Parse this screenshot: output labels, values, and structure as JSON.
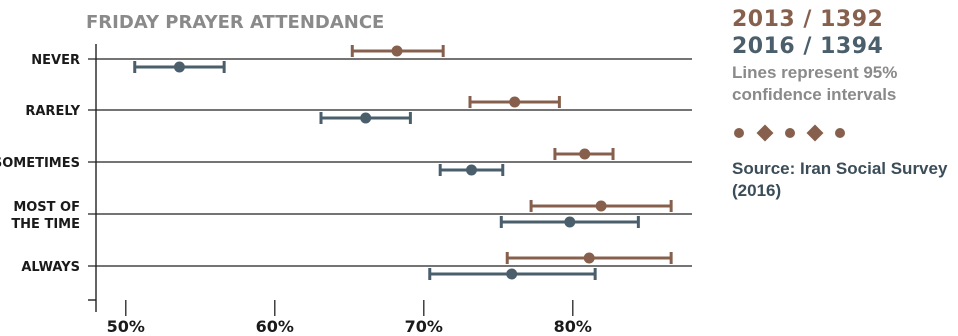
{
  "colors": {
    "series_2013": "#87604d",
    "series_2016": "#4a5f6b",
    "axis": "#222222",
    "title": "#8a8a8a"
  },
  "chart_data": {
    "type": "scatter",
    "subtype": "dot-with-error-bars",
    "title": "FRIDAY PRAYER ATTENDANCE",
    "categories": [
      "NEVER",
      "RARELY",
      "SOMETIMES",
      "MOST OF THE TIME",
      "ALWAYS"
    ],
    "category_lines": [
      [
        "NEVER"
      ],
      [
        "RARELY"
      ],
      [
        "SOMETIMES"
      ],
      [
        "MOST OF",
        "THE TIME"
      ],
      [
        "ALWAYS"
      ]
    ],
    "xlim": [
      48,
      88
    ],
    "xticks": [
      50,
      60,
      70,
      80
    ],
    "xtick_labels": [
      "50%",
      "60%",
      "70%",
      "80%"
    ],
    "grid": "horizontal",
    "series": [
      {
        "name": "2013 / 1392",
        "color": "#87604d",
        "values": [
          68.2,
          76.1,
          80.8,
          81.9,
          81.1
        ],
        "ci_low": [
          65.2,
          73.1,
          78.8,
          77.2,
          75.6
        ],
        "ci_high": [
          71.3,
          79.1,
          82.7,
          86.6,
          86.6
        ]
      },
      {
        "name": "2016 / 1394",
        "color": "#4a5f6b",
        "values": [
          53.6,
          66.1,
          73.2,
          79.8,
          75.9
        ],
        "ci_low": [
          50.6,
          63.1,
          71.1,
          75.2,
          70.4
        ],
        "ci_high": [
          56.6,
          69.1,
          75.3,
          84.4,
          81.5
        ]
      }
    ]
  },
  "legend": {
    "year_2013": "2013 / 1392",
    "year_2016": "2016 / 1394",
    "note": "Lines represent 95% confidence intervals",
    "source": "Source: Iran Social Survey (2016)"
  }
}
